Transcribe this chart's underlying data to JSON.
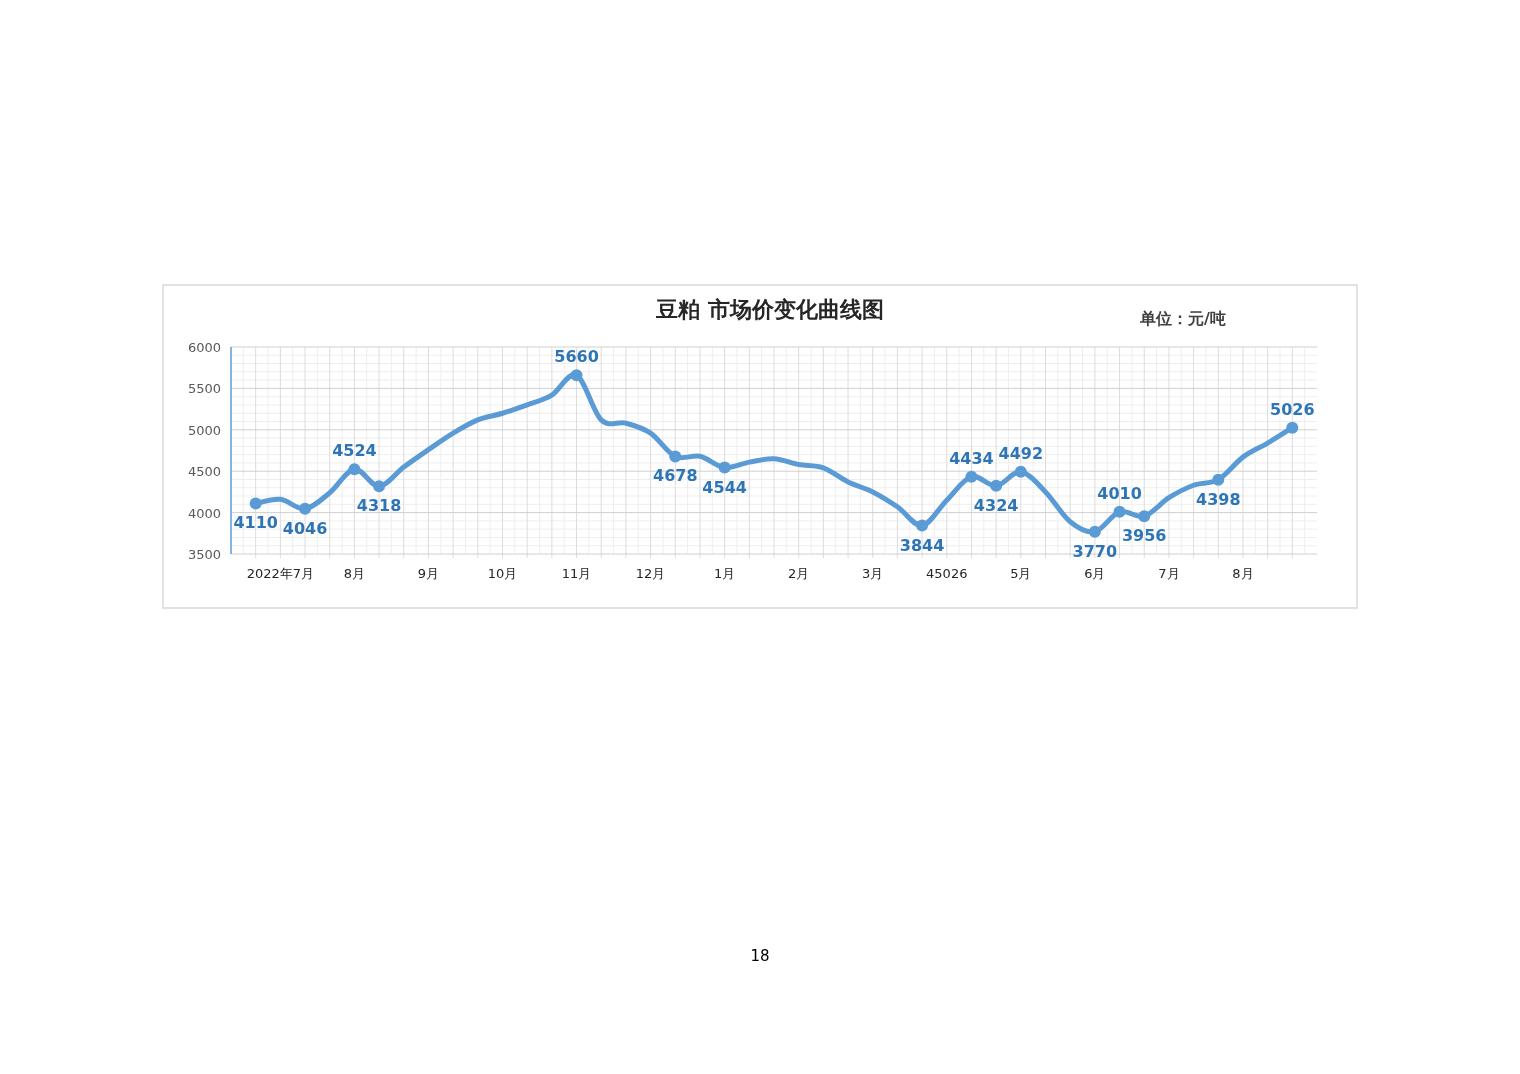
{
  "chart_data": {
    "type": "line",
    "title": "豆粕 市场价变化曲线图",
    "annotations": [
      "单位：元/吨",
      "18"
    ],
    "categories": [
      null,
      "2022年7月",
      null,
      null,
      "8月",
      null,
      null,
      "9月",
      null,
      null,
      "10月",
      null,
      null,
      "11月",
      null,
      null,
      "12月",
      null,
      null,
      "1月",
      null,
      null,
      "2月",
      null,
      null,
      "3月",
      null,
      null,
      "45026",
      null,
      null,
      "5月",
      null,
      null,
      "6月",
      null,
      null,
      "7月",
      null,
      null,
      "8月",
      null,
      null
    ],
    "series": [
      {
        "color": "#5b9bd5",
        "values": [
          4110,
          4160,
          4046,
          4240,
          4524,
          4318,
          4550,
          4760,
          4960,
          5120,
          5200,
          5300,
          5420,
          5660,
          5120,
          5080,
          4960,
          4678,
          4680,
          4544,
          4610,
          4650,
          4580,
          4540,
          4370,
          4250,
          4070,
          3844,
          4150,
          4434,
          4324,
          4492,
          4250,
          3890,
          3770,
          4010,
          3956,
          4180,
          4330,
          4398,
          4670,
          4840,
          5026
        ],
        "value_labels": [
          "4110",
          null,
          "4046",
          null,
          "4524",
          "4318",
          null,
          null,
          null,
          null,
          null,
          null,
          null,
          "5660",
          null,
          null,
          null,
          "4678",
          null,
          "4544",
          null,
          null,
          null,
          null,
          null,
          null,
          null,
          "3844",
          null,
          "4434",
          "4324",
          "4492",
          null,
          null,
          "3770",
          "4010",
          "3956",
          null,
          null,
          "4398",
          null,
          null,
          "5026"
        ]
      }
    ],
    "ylim": [
      3500,
      6000
    ],
    "yticks": [
      3500,
      4000,
      4500,
      5000,
      5500,
      6000
    ],
    "grid": true,
    "line_style": "solid"
  }
}
